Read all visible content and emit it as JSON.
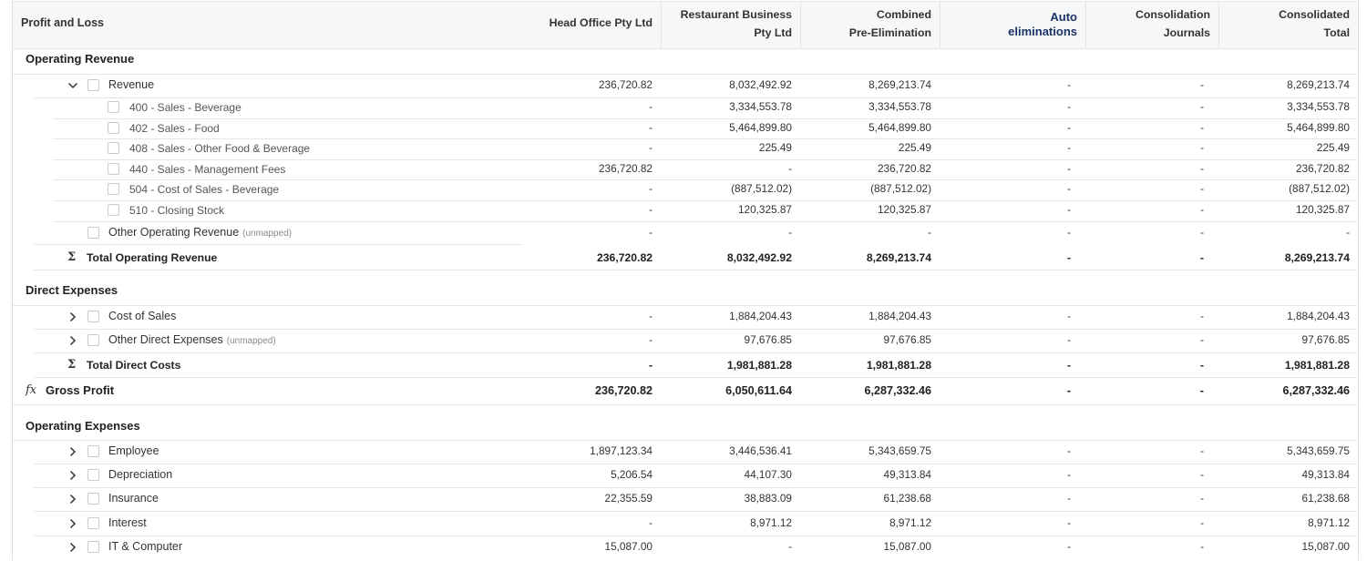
{
  "title": "Profit and Loss",
  "columns": [
    {
      "key": "head",
      "lines": [
        "Head Office Pty Ltd"
      ]
    },
    {
      "key": "rest",
      "lines": [
        "Restaurant Business",
        "Pty Ltd"
      ]
    },
    {
      "key": "comb",
      "lines": [
        "Combined",
        "Pre-Elimination"
      ]
    },
    {
      "key": "auto",
      "lines": [
        "Auto",
        "eliminations"
      ],
      "accent": "#1a3266"
    },
    {
      "key": "cj",
      "lines": [
        "Consolidation",
        "Journals"
      ]
    },
    {
      "key": "ct",
      "lines": [
        "Consolidated",
        "Total"
      ]
    }
  ],
  "unmapped_label": "(unmapped)",
  "sum_symbol": "Σ",
  "formula_symbol": "fx",
  "rows": [
    {
      "type": "section",
      "label": "Operating Revenue"
    },
    {
      "type": "group",
      "label": "Revenue",
      "expander": "chevron-down",
      "values": [
        "236,720.82",
        "8,032,492.92",
        "8,269,213.74",
        "-",
        "-",
        "8,269,213.74"
      ]
    },
    {
      "type": "account",
      "label": "400 - Sales - Beverage",
      "values": [
        "-",
        "3,334,553.78",
        "3,334,553.78",
        "-",
        "-",
        "3,334,553.78"
      ]
    },
    {
      "type": "account",
      "label": "402 - Sales - Food",
      "values": [
        "-",
        "5,464,899.80",
        "5,464,899.80",
        "-",
        "-",
        "5,464,899.80"
      ]
    },
    {
      "type": "account",
      "label": "408 - Sales - Other Food & Beverage",
      "values": [
        "-",
        "225.49",
        "225.49",
        "-",
        "-",
        "225.49"
      ]
    },
    {
      "type": "account",
      "label": "440 - Sales - Management Fees",
      "values": [
        "236,720.82",
        "-",
        "236,720.82",
        "-",
        "-",
        "236,720.82"
      ]
    },
    {
      "type": "account",
      "label": "504 - Cost of Sales - Beverage",
      "values": [
        "-",
        "(887,512.02)",
        "(887,512.02)",
        "-",
        "-",
        "(887,512.02)"
      ]
    },
    {
      "type": "account",
      "label": "510 - Closing Stock",
      "values": [
        "-",
        "120,325.87",
        "120,325.87",
        "-",
        "-",
        "120,325.87"
      ]
    },
    {
      "type": "group",
      "label": "Other Operating Revenue",
      "unmapped": true,
      "expander": "none",
      "values": [
        "-",
        "-",
        "-",
        "-",
        "-",
        "-"
      ]
    },
    {
      "type": "total",
      "label": "Total Operating Revenue",
      "values": [
        "236,720.82",
        "8,032,492.92",
        "8,269,213.74",
        "-",
        "-",
        "8,269,213.74"
      ]
    },
    {
      "type": "section",
      "label": "Direct Expenses"
    },
    {
      "type": "group",
      "label": "Cost of Sales",
      "expander": "chevron-right",
      "values": [
        "-",
        "1,884,204.43",
        "1,884,204.43",
        "-",
        "-",
        "1,884,204.43"
      ]
    },
    {
      "type": "group",
      "label": "Other Direct Expenses",
      "unmapped": true,
      "expander": "chevron-right",
      "values": [
        "-",
        "97,676.85",
        "97,676.85",
        "-",
        "-",
        "97,676.85"
      ]
    },
    {
      "type": "total",
      "label": "Total Direct Costs",
      "values": [
        "-",
        "1,981,881.28",
        "1,981,881.28",
        "-",
        "-",
        "1,981,881.28"
      ]
    },
    {
      "type": "formula",
      "label": "Gross Profit",
      "values": [
        "236,720.82",
        "6,050,611.64",
        "6,287,332.46",
        "-",
        "-",
        "6,287,332.46"
      ]
    },
    {
      "type": "section",
      "label": "Operating Expenses"
    },
    {
      "type": "group",
      "label": "Employee",
      "expander": "chevron-right",
      "values": [
        "1,897,123.34",
        "3,446,536.41",
        "5,343,659.75",
        "-",
        "-",
        "5,343,659.75"
      ]
    },
    {
      "type": "group",
      "label": "Depreciation",
      "expander": "chevron-right",
      "values": [
        "5,206.54",
        "44,107.30",
        "49,313.84",
        "-",
        "-",
        "49,313.84"
      ]
    },
    {
      "type": "group",
      "label": "Insurance",
      "expander": "chevron-right",
      "values": [
        "22,355.59",
        "38,883.09",
        "61,238.68",
        "-",
        "-",
        "61,238.68"
      ]
    },
    {
      "type": "group",
      "label": "Interest",
      "expander": "chevron-right",
      "values": [
        "-",
        "8,971.12",
        "8,971.12",
        "-",
        "-",
        "8,971.12"
      ]
    },
    {
      "type": "group",
      "label": "IT & Computer",
      "expander": "chevron-right",
      "values": [
        "15,087.00",
        "-",
        "15,087.00",
        "-",
        "-",
        "15,087.00"
      ]
    }
  ]
}
